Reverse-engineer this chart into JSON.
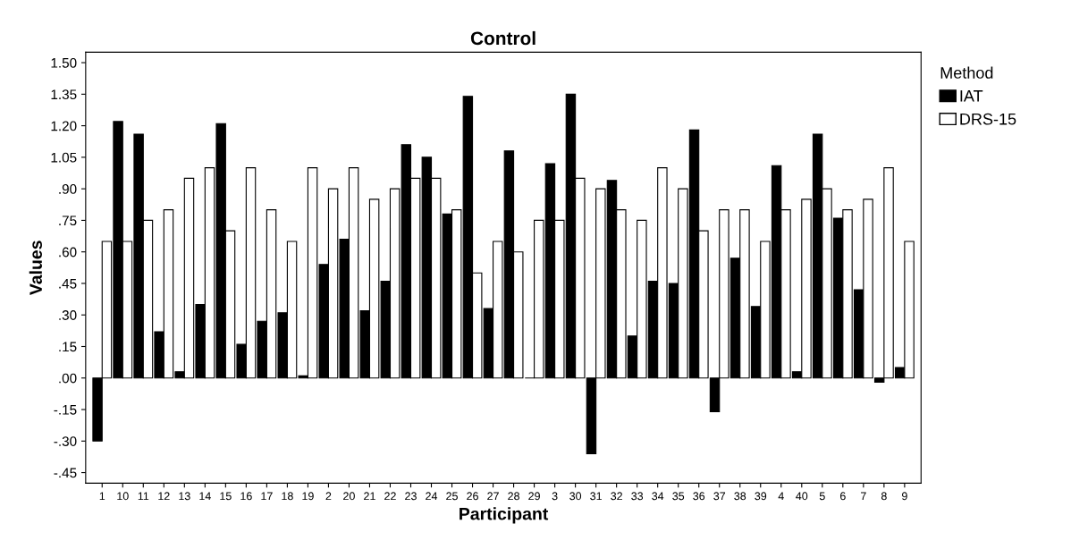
{
  "chart_data": {
    "type": "bar",
    "title": "Control",
    "xlabel": "Participant",
    "ylabel": "Values",
    "legend_title": "Method",
    "legend": "top right",
    "grid": false,
    "categories": [
      "1",
      "10",
      "11",
      "12",
      "13",
      "14",
      "15",
      "16",
      "17",
      "18",
      "19",
      "2",
      "20",
      "21",
      "22",
      "23",
      "24",
      "25",
      "26",
      "27",
      "28",
      "29",
      "3",
      "30",
      "31",
      "32",
      "33",
      "34",
      "35",
      "36",
      "37",
      "38",
      "39",
      "4",
      "40",
      "5",
      "6",
      "7",
      "8",
      "9"
    ],
    "series": [
      {
        "name": "IAT",
        "color": "#000000",
        "values": [
          -0.3,
          1.22,
          1.16,
          0.22,
          0.03,
          0.35,
          1.21,
          0.16,
          0.27,
          0.31,
          0.01,
          0.54,
          0.66,
          0.32,
          0.46,
          1.11,
          1.05,
          0.78,
          1.34,
          0.33,
          1.08,
          0.0,
          1.02,
          1.35,
          -0.36,
          0.94,
          0.2,
          0.46,
          0.45,
          1.18,
          -0.16,
          0.57,
          0.34,
          1.01,
          0.03,
          1.16,
          0.76,
          0.42,
          -0.02,
          0.05
        ]
      },
      {
        "name": "DRS-15",
        "color": "#ffffff",
        "values": [
          0.65,
          0.65,
          0.75,
          0.8,
          0.95,
          1.0,
          0.7,
          1.0,
          0.8,
          0.65,
          1.0,
          0.9,
          1.0,
          0.85,
          0.9,
          0.95,
          0.95,
          0.8,
          0.5,
          0.65,
          0.6,
          0.75,
          0.75,
          0.95,
          0.9,
          0.8,
          0.75,
          1.0,
          0.9,
          0.7,
          0.8,
          0.8,
          0.65,
          0.8,
          0.85,
          0.9,
          0.8,
          0.85,
          1.0,
          0.65
        ]
      }
    ],
    "ylim": [
      -0.5,
      1.55
    ],
    "yticks": [
      {
        "value": -0.45,
        "label": "-.45"
      },
      {
        "value": -0.3,
        "label": "-.30"
      },
      {
        "value": -0.15,
        "label": "-.15"
      },
      {
        "value": 0,
        "label": ".00"
      },
      {
        "value": 0.15,
        "label": ".15"
      },
      {
        "value": 0.3,
        "label": ".30"
      },
      {
        "value": 0.45,
        "label": ".45"
      },
      {
        "value": 0.6,
        "label": ".60"
      },
      {
        "value": 0.75,
        "label": ".75"
      },
      {
        "value": 0.9,
        "label": ".90"
      },
      {
        "value": 1.05,
        "label": "1.05"
      },
      {
        "value": 1.2,
        "label": "1.20"
      },
      {
        "value": 1.35,
        "label": "1.35"
      },
      {
        "value": 1.5,
        "label": "1.50"
      }
    ]
  }
}
